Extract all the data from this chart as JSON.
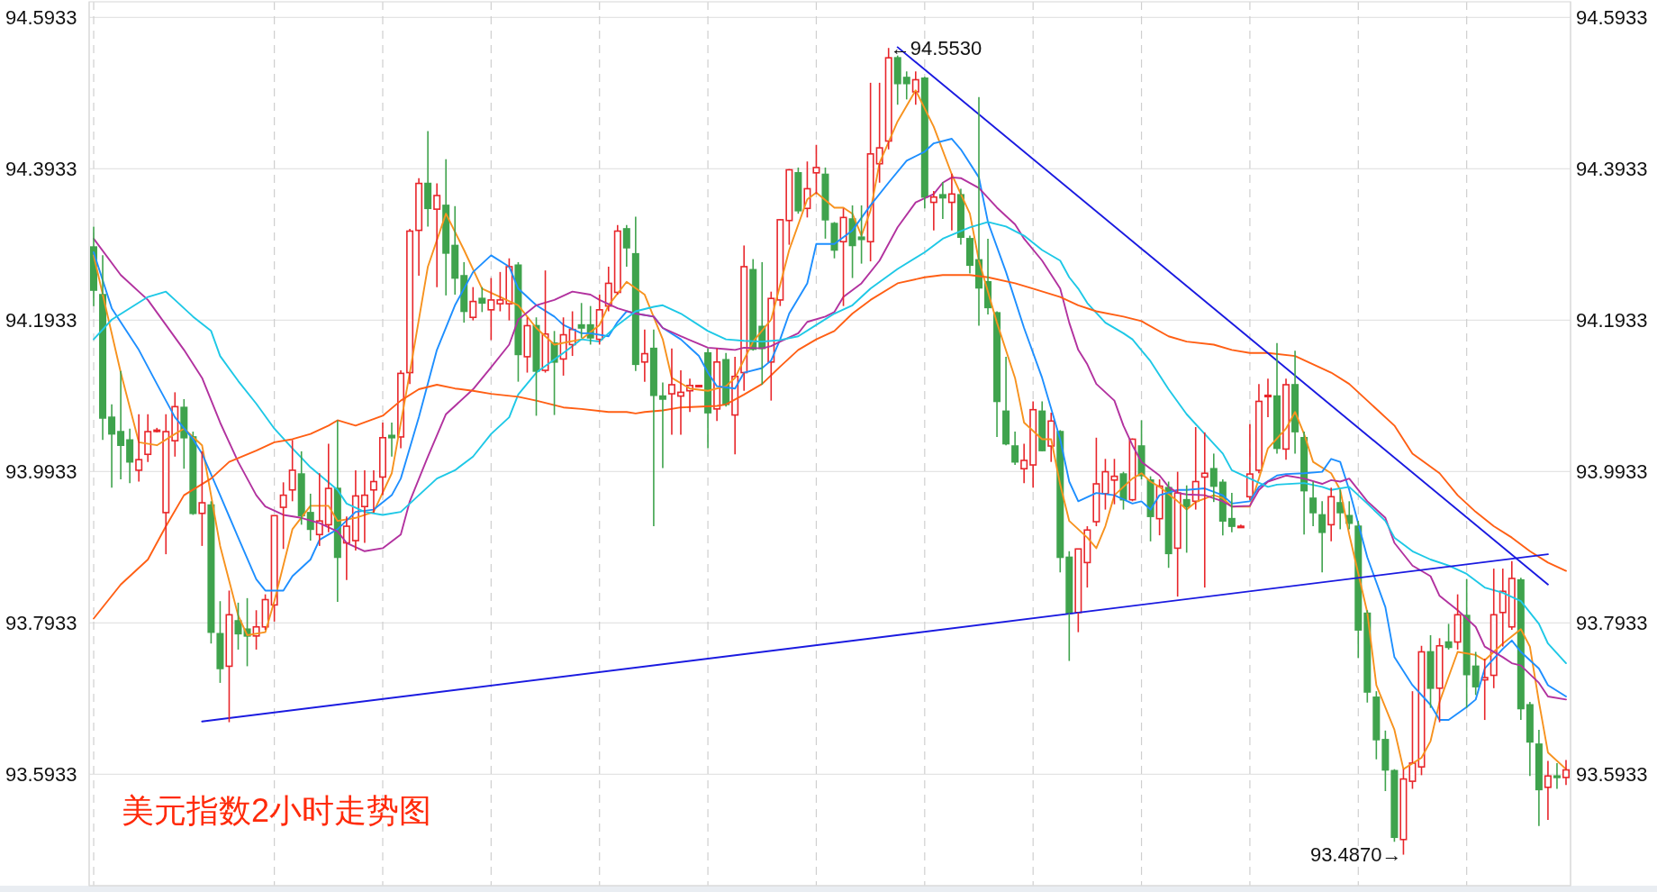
{
  "chart_data": {
    "type": "candlestick",
    "title": "美元指数2小时走势图",
    "categories": [
      null,
      null,
      null,
      null,
      null,
      null,
      null,
      null,
      null,
      null,
      null,
      null,
      null,
      null,
      null,
      null,
      null,
      null,
      null,
      null,
      null,
      null,
      null,
      null,
      null,
      null,
      null,
      null,
      null,
      null,
      null,
      null,
      null,
      null,
      null,
      null,
      null,
      null,
      null,
      null,
      null,
      null,
      null,
      null,
      null,
      null,
      null,
      null,
      null,
      null,
      null,
      null,
      null,
      null,
      null,
      null,
      null,
      null,
      null,
      null,
      null,
      null,
      null,
      null,
      null,
      null,
      null,
      null,
      null,
      null,
      null,
      null,
      null,
      null,
      null,
      null,
      null,
      null,
      null,
      null,
      null,
      null,
      null,
      null,
      null,
      null,
      null,
      null,
      null,
      null,
      null,
      null,
      null,
      null,
      null,
      null,
      null,
      null,
      null,
      null,
      null,
      null,
      null,
      null,
      null,
      null,
      null,
      null,
      null,
      null,
      null,
      null,
      null,
      null,
      null,
      null,
      null,
      null,
      null,
      null,
      null,
      null,
      null,
      null,
      null,
      null,
      null,
      null,
      null,
      null,
      null,
      null,
      null,
      null,
      null,
      null,
      null,
      null,
      null,
      null,
      null,
      null,
      null,
      null,
      null,
      null,
      null,
      null,
      null,
      null,
      null,
      null,
      null,
      null,
      null,
      null,
      null,
      null,
      null,
      null,
      null,
      null,
      null,
      null
    ],
    "ohlc": [
      [
        94.29,
        94.317,
        94.212,
        94.233
      ],
      [
        94.227,
        94.279,
        94.035,
        94.064
      ],
      [
        94.065,
        94.082,
        93.972,
        94.043
      ],
      [
        94.046,
        94.126,
        93.983,
        94.028
      ],
      [
        94.035,
        94.05,
        93.978,
        94.006
      ],
      [
        93.995,
        94.069,
        93.98,
        94.009
      ],
      [
        94.016,
        94.069,
        94.006,
        94.046
      ],
      [
        94.048,
        94.051,
        94.045,
        94.048
      ],
      [
        93.939,
        94.069,
        93.884,
        94.046
      ],
      [
        94.034,
        94.098,
        94.013,
        94.079
      ],
      [
        94.078,
        94.089,
        93.997,
        94.038
      ],
      [
        94.039,
        94.046,
        93.936,
        93.938
      ],
      [
        93.938,
        94.02,
        93.895,
        93.952
      ],
      [
        93.949,
        93.954,
        93.766,
        93.781
      ],
      [
        93.779,
        93.822,
        93.714,
        93.733
      ],
      [
        93.736,
        93.836,
        93.662,
        93.804
      ],
      [
        93.796,
        93.82,
        93.758,
        93.779
      ],
      [
        93.785,
        93.826,
        93.736,
        93.776
      ],
      [
        93.776,
        93.81,
        93.758,
        93.788
      ],
      [
        93.788,
        93.831,
        93.784,
        93.824
      ],
      [
        93.817,
        93.935,
        93.795,
        93.935
      ],
      [
        93.946,
        93.979,
        93.891,
        93.962
      ],
      [
        93.969,
        94.035,
        93.954,
        93.995
      ],
      [
        93.99,
        94.02,
        93.923,
        93.935
      ],
      [
        93.939,
        93.964,
        93.902,
        93.917
      ],
      [
        93.91,
        93.991,
        93.895,
        93.928
      ],
      [
        93.923,
        94.03,
        93.913,
        93.971
      ],
      [
        93.971,
        94.061,
        93.821,
        93.88
      ],
      [
        93.899,
        93.934,
        93.85,
        93.921
      ],
      [
        93.902,
        93.995,
        93.889,
        93.961
      ],
      [
        93.947,
        93.995,
        93.899,
        93.962
      ],
      [
        93.969,
        93.995,
        93.939,
        93.98
      ],
      [
        93.986,
        94.058,
        93.962,
        94.038
      ],
      [
        94.041,
        94.058,
        94.013,
        94.038
      ],
      [
        94.039,
        94.127,
        94.024,
        94.123
      ],
      [
        94.124,
        94.314,
        94.109,
        94.311
      ],
      [
        94.312,
        94.381,
        94.252,
        94.374
      ],
      [
        94.374,
        94.443,
        94.317,
        94.341
      ],
      [
        94.34,
        94.374,
        94.237,
        94.358
      ],
      [
        94.345,
        94.406,
        94.226,
        94.282
      ],
      [
        94.292,
        94.344,
        94.227,
        94.249
      ],
      [
        94.252,
        94.27,
        94.19,
        94.205
      ],
      [
        94.197,
        94.237,
        94.193,
        94.218
      ],
      [
        94.222,
        94.237,
        94.204,
        94.216
      ],
      [
        94.207,
        94.249,
        94.167,
        94.22
      ],
      [
        94.215,
        94.257,
        94.205,
        94.22
      ],
      [
        94.215,
        94.275,
        94.193,
        94.264
      ],
      [
        94.266,
        94.27,
        94.112,
        94.148
      ],
      [
        94.145,
        94.197,
        94.124,
        94.186
      ],
      [
        94.186,
        94.197,
        94.067,
        94.126
      ],
      [
        94.127,
        94.259,
        94.124,
        94.175
      ],
      [
        94.163,
        94.179,
        94.068,
        94.138
      ],
      [
        94.142,
        94.197,
        94.12,
        94.174
      ],
      [
        94.161,
        94.205,
        94.146,
        94.181
      ],
      [
        94.187,
        94.216,
        94.17,
        94.183
      ],
      [
        94.187,
        94.212,
        94.161,
        94.17
      ],
      [
        94.168,
        94.227,
        94.161,
        94.207
      ],
      [
        94.212,
        94.264,
        94.205,
        94.242
      ],
      [
        94.23,
        94.319,
        94.227,
        94.311
      ],
      [
        94.314,
        94.319,
        94.264,
        94.289
      ],
      [
        94.281,
        94.33,
        94.126,
        94.135
      ],
      [
        94.138,
        94.181,
        94.112,
        94.149
      ],
      [
        94.156,
        94.181,
        93.921,
        94.094
      ],
      [
        94.093,
        94.111,
        93.998,
        94.089
      ],
      [
        94.096,
        94.156,
        94.042,
        94.108
      ],
      [
        94.093,
        94.127,
        94.042,
        94.098
      ],
      [
        94.1,
        94.116,
        94.072,
        94.107
      ],
      [
        94.107,
        94.108,
        94.106,
        94.107
      ],
      [
        94.15,
        94.156,
        94.024,
        94.071
      ],
      [
        94.076,
        94.156,
        94.06,
        94.138
      ],
      [
        94.141,
        94.15,
        94.079,
        94.082
      ],
      [
        94.068,
        94.145,
        94.016,
        94.119
      ],
      [
        94.124,
        94.292,
        94.1,
        94.264
      ],
      [
        94.26,
        94.274,
        94.153,
        94.155
      ],
      [
        94.185,
        94.27,
        94.108,
        94.156
      ],
      [
        94.138,
        94.231,
        94.087,
        94.222
      ],
      [
        94.22,
        94.327,
        94.212,
        94.326
      ],
      [
        94.325,
        94.393,
        94.293,
        94.392
      ],
      [
        94.388,
        94.395,
        94.334,
        94.338
      ],
      [
        94.341,
        94.403,
        94.329,
        94.367
      ],
      [
        94.388,
        94.425,
        94.36,
        94.395
      ],
      [
        94.386,
        94.395,
        94.301,
        94.326
      ],
      [
        94.321,
        94.323,
        94.275,
        94.286
      ],
      [
        94.297,
        94.341,
        94.212,
        94.329
      ],
      [
        94.327,
        94.345,
        94.249,
        94.292
      ],
      [
        94.303,
        94.345,
        94.268,
        94.3
      ],
      [
        94.297,
        94.507,
        94.271,
        94.413
      ],
      [
        94.4,
        94.507,
        94.375,
        94.421
      ],
      [
        94.43,
        94.553,
        94.419,
        94.54
      ],
      [
        94.54,
        94.543,
        94.478,
        94.506
      ],
      [
        94.514,
        94.522,
        94.485,
        94.506
      ],
      [
        94.495,
        94.522,
        94.478,
        94.511
      ],
      [
        94.513,
        94.515,
        94.341,
        94.356
      ],
      [
        94.349,
        94.364,
        94.312,
        94.356
      ],
      [
        94.359,
        94.376,
        94.327,
        94.355
      ],
      [
        94.349,
        94.387,
        94.312,
        94.36
      ],
      [
        94.359,
        94.367,
        94.293,
        94.303
      ],
      [
        94.301,
        94.305,
        94.255,
        94.266
      ],
      [
        94.273,
        94.488,
        94.186,
        94.236
      ],
      [
        94.244,
        94.301,
        94.201,
        94.21
      ],
      [
        94.203,
        94.205,
        94.039,
        94.086
      ],
      [
        94.073,
        94.145,
        94.028,
        94.03
      ],
      [
        94.027,
        94.046,
        94.002,
        94.006
      ],
      [
        93.997,
        94.03,
        93.978,
        94.008
      ],
      [
        94.002,
        94.086,
        93.972,
        94.075
      ],
      [
        94.073,
        94.086,
        94.02,
        94.021
      ],
      [
        94.027,
        94.071,
        94.006,
        94.06
      ],
      [
        94.046,
        94.048,
        93.86,
        93.88
      ],
      [
        93.88,
        93.888,
        93.743,
        93.806
      ],
      [
        93.807,
        93.891,
        93.781,
        93.891
      ],
      [
        93.873,
        93.921,
        93.84,
        93.916
      ],
      [
        93.927,
        94.038,
        93.921,
        93.977
      ],
      [
        93.964,
        94.01,
        93.943,
        93.993
      ],
      [
        93.982,
        94.01,
        93.95,
        93.987
      ],
      [
        93.99,
        93.993,
        93.943,
        93.956
      ],
      [
        93.956,
        94.037,
        93.954,
        94.036
      ],
      [
        94.027,
        94.061,
        93.983,
        93.988
      ],
      [
        93.982,
        93.987,
        93.901,
        93.934
      ],
      [
        93.931,
        93.983,
        93.909,
        93.974
      ],
      [
        93.972,
        93.98,
        93.866,
        93.885
      ],
      [
        93.892,
        93.993,
        93.828,
        93.965
      ],
      [
        93.956,
        93.975,
        93.886,
        93.947
      ],
      [
        93.954,
        94.052,
        93.943,
        93.98
      ],
      [
        93.986,
        94.045,
        93.84,
        93.991
      ],
      [
        93.997,
        94.017,
        93.953,
        93.974
      ],
      [
        93.979,
        93.983,
        93.909,
        93.928
      ],
      [
        93.931,
        93.965,
        93.913,
        93.921
      ],
      [
        93.921,
        93.923,
        93.919,
        93.921
      ],
      [
        93.96,
        94.056,
        93.956,
        93.99
      ],
      [
        93.995,
        94.109,
        93.991,
        94.086
      ],
      [
        94.093,
        94.116,
        94.065,
        94.094
      ],
      [
        94.093,
        94.163,
        94.017,
        94.024
      ],
      [
        94.023,
        94.116,
        94.009,
        94.108
      ],
      [
        94.108,
        94.153,
        94.017,
        94.046
      ],
      [
        94.038,
        94.046,
        93.91,
        93.968
      ],
      [
        93.958,
        93.98,
        93.921,
        93.939
      ],
      [
        93.936,
        93.954,
        93.86,
        93.913
      ],
      [
        93.923,
        93.972,
        93.901,
        93.96
      ],
      [
        93.952,
        93.969,
        93.917,
        93.939
      ],
      [
        93.935,
        93.954,
        93.917,
        93.925
      ],
      [
        93.921,
        93.928,
        93.747,
        93.784
      ],
      [
        93.806,
        93.81,
        93.688,
        93.702
      ],
      [
        93.695,
        93.703,
        93.613,
        93.639
      ],
      [
        93.639,
        93.651,
        93.571,
        93.599
      ],
      [
        93.598,
        93.6,
        93.504,
        93.51
      ],
      [
        93.507,
        93.6,
        93.487,
        93.587
      ],
      [
        93.584,
        93.703,
        93.574,
        93.608
      ],
      [
        93.603,
        93.763,
        93.592,
        93.755
      ],
      [
        93.755,
        93.777,
        93.681,
        93.707
      ],
      [
        93.707,
        93.773,
        93.662,
        93.763
      ],
      [
        93.768,
        93.792,
        93.758,
        93.761
      ],
      [
        93.768,
        93.831,
        93.758,
        93.804
      ],
      [
        93.803,
        93.851,
        93.681,
        93.725
      ],
      [
        93.736,
        93.755,
        93.698,
        93.709
      ],
      [
        93.718,
        93.746,
        93.665,
        93.721
      ],
      [
        93.724,
        93.865,
        93.707,
        93.804
      ],
      [
        93.807,
        93.865,
        93.762,
        93.835
      ],
      [
        93.788,
        93.875,
        93.784,
        93.852
      ],
      [
        93.85,
        93.853,
        93.665,
        93.68
      ],
      [
        93.685,
        93.689,
        93.591,
        93.636
      ],
      [
        93.633,
        93.652,
        93.525,
        93.573
      ],
      [
        93.576,
        93.611,
        93.533,
        93.591
      ],
      [
        93.591,
        93.608,
        93.574,
        93.589
      ],
      [
        93.589,
        93.612,
        93.579,
        93.599
      ]
    ],
    "series": [
      {
        "type": "line",
        "color": "#f7921e",
        "values": [
          94.279,
          null,
          null,
          94.124,
          null,
          94.032,
          null,
          94.028,
          null,
          94.043,
          94.05,
          null,
          94.028,
          null,
          93.895,
          null,
          93.803,
          93.777,
          null,
          93.781,
          93.822,
          null,
          93.917,
          null,
          93.948,
          null,
          93.948,
          93.928,
          null,
          93.932,
          null,
          93.94,
          null,
          93.991,
          null,
          94.124,
          null,
          94.264,
          null,
          94.334,
          null,
          94.286,
          null,
          94.235,
          null,
          94.224,
          null,
          94.213,
          null,
          94.183,
          null,
          94.161,
          null,
          null,
          94.168,
          null,
          94.187,
          94.213,
          null,
          94.244,
          null,
          94.227,
          null,
          94.168,
          94.117,
          null,
          94.103,
          null,
          94.1,
          null,
          94.106,
          94.117,
          null,
          94.165,
          null,
          94.194,
          null,
          94.286,
          null,
          94.353,
          94.362,
          null,
          94.342,
          94.342,
          94.334,
          94.305,
          94.338,
          94.401,
          null,
          94.456,
          null,
          94.497,
          null,
          94.449,
          null,
          94.386,
          null,
          94.334,
          94.272,
          null,
          94.19,
          null,
          94.117,
          94.058,
          null,
          94.036,
          94.036,
          93.976,
          93.928,
          null,
          93.906,
          93.892,
          93.921,
          93.962,
          null,
          93.984,
          93.991,
          93.98,
          93.973,
          null,
          93.954,
          93.943,
          93.953,
          null,
          93.962,
          93.958,
          93.947,
          null,
          93.947,
          93.984,
          94.024,
          null,
          94.05,
          94.072,
          94.043,
          94.006,
          null,
          93.991,
          93.969,
          93.91,
          null,
          93.807,
          93.711,
          null,
          93.652,
          93.6,
          null,
          93.615,
          93.637,
          93.689,
          null,
          93.755,
          null,
          93.751,
          93.744,
          null,
          93.766,
          null,
          93.785,
          93.762,
          93.689,
          93.622,
          null,
          93.6
        ]
      },
      {
        "type": "line",
        "color": "#1e8fff",
        "values": [
          94.283,
          null,
          94.209,
          null,
          null,
          94.154,
          null,
          94.109,
          null,
          94.065,
          null,
          94.036,
          94.017,
          null,
          93.962,
          null,
          93.906,
          null,
          93.851,
          93.836,
          null,
          93.836,
          93.855,
          null,
          93.877,
          93.903,
          null,
          93.917,
          null,
          93.94,
          null,
          93.943,
          null,
          93.962,
          93.984,
          null,
          94.065,
          null,
          94.154,
          null,
          94.213,
          null,
          94.257,
          null,
          94.279,
          null,
          94.264,
          94.235,
          null,
          94.213,
          null,
          94.198,
          94.187,
          null,
          94.176,
          94.176,
          null,
          94.172,
          94.191,
          94.205,
          94.202,
          null,
          94.198,
          94.183,
          null,
          94.168,
          null,
          94.146,
          94.124,
          94.106,
          null,
          94.103,
          94.124,
          null,
          94.13,
          94.14,
          94.168,
          94.202,
          null,
          94.242,
          94.294,
          null,
          94.294,
          null,
          94.312,
          null,
          94.345,
          null,
          94.375,
          null,
          94.404,
          null,
          94.416,
          94.427,
          null,
          94.433,
          94.419,
          null,
          94.382,
          94.323,
          null,
          94.257,
          null,
          94.183,
          null,
          94.117,
          null,
          94.036,
          93.98,
          93.954,
          null,
          93.965,
          null,
          93.962,
          null,
          93.951,
          93.954,
          93.943,
          93.962,
          null,
          93.969,
          93.969,
          null,
          93.971,
          null,
          93.962,
          93.951,
          null,
          93.954,
          93.973,
          null,
          93.988,
          93.99,
          null,
          93.991,
          null,
          93.993,
          94.01,
          94.006,
          93.969,
          null,
          93.88,
          null,
          93.814,
          93.748,
          null,
          93.711,
          null,
          93.685,
          93.665,
          93.665,
          null,
          93.682,
          93.692,
          93.733,
          null,
          93.759,
          93.77,
          93.755,
          null,
          93.733,
          93.711,
          null,
          93.696
        ]
      },
      {
        "type": "line",
        "color": "#b2329f",
        "values": [
          94.301,
          null,
          null,
          94.253,
          null,
          null,
          94.22,
          null,
          94.187,
          null,
          94.154,
          null,
          94.117,
          null,
          94.058,
          null,
          94.006,
          null,
          93.962,
          93.947,
          null,
          93.936,
          null,
          93.932,
          null,
          93.925,
          null,
          93.914,
          93.899,
          null,
          93.888,
          null,
          93.892,
          null,
          93.91,
          93.954,
          null,
          94.013,
          null,
          94.069,
          null,
          null,
          94.102,
          null,
          94.131,
          null,
          94.161,
          94.194,
          null,
          94.213,
          null,
          94.22,
          null,
          94.231,
          null,
          94.227,
          94.22,
          null,
          94.209,
          null,
          94.202,
          null,
          94.198,
          94.183,
          null,
          94.172,
          null,
          94.162,
          94.157,
          null,
          94.155,
          94.154,
          94.157,
          null,
          94.156,
          94.159,
          94.165,
          null,
          94.176,
          94.191,
          null,
          94.198,
          94.204,
          94.224,
          null,
          94.242,
          null,
          94.272,
          null,
          94.316,
          null,
          94.349,
          null,
          94.36,
          94.375,
          94.382,
          94.381,
          null,
          94.368,
          null,
          94.342,
          null,
          94.32,
          94.301,
          null,
          94.272,
          null,
          94.235,
          94.19,
          94.154,
          94.135,
          94.109,
          null,
          94.087,
          94.054,
          94.028,
          94.006,
          null,
          93.988,
          93.973,
          93.965,
          93.963,
          null,
          93.962,
          null,
          93.954,
          93.947,
          null,
          93.948,
          93.969,
          93.98,
          null,
          93.988,
          null,
          93.984,
          null,
          93.977,
          93.982,
          93.98,
          93.984,
          null,
          93.954,
          null,
          93.932,
          93.899,
          null,
          93.869,
          null,
          93.855,
          93.829,
          null,
          93.81,
          null,
          93.788,
          93.762,
          null,
          93.748,
          93.74,
          93.737,
          null,
          93.714,
          93.696,
          null,
          93.692
        ]
      },
      {
        "type": "line",
        "color": "#1ec8e6",
        "values": [
          94.168,
          null,
          94.194,
          null,
          null,
          null,
          94.224,
          null,
          94.231,
          94.22,
          null,
          94.198,
          null,
          94.179,
          94.146,
          null,
          94.113,
          null,
          94.083,
          null,
          94.05,
          null,
          94.024,
          null,
          93.999,
          null,
          null,
          93.969,
          93.951,
          null,
          93.94,
          null,
          93.936,
          null,
          93.94,
          null,
          93.962,
          null,
          93.984,
          null,
          93.995,
          null,
          94.013,
          null,
          94.043,
          null,
          94.065,
          94.095,
          null,
          94.124,
          null,
          null,
          94.15,
          null,
          94.168,
          null,
          94.165,
          null,
          94.187,
          null,
          94.205,
          null,
          94.211,
          94.213,
          null,
          94.202,
          null,
          null,
          94.179,
          null,
          94.168,
          null,
          94.166,
          null,
          94.165,
          null,
          94.167,
          null,
          94.172,
          null,
          94.187,
          null,
          94.202,
          null,
          94.213,
          null,
          94.235,
          null,
          null,
          94.261,
          null,
          null,
          94.283,
          null,
          94.301,
          null,
          null,
          94.316,
          null,
          94.323,
          null,
          94.317,
          null,
          94.305,
          null,
          94.286,
          null,
          94.272,
          94.25,
          94.235,
          94.216,
          null,
          94.19,
          null,
          94.176,
          94.168,
          null,
          94.139,
          null,
          94.102,
          null,
          94.069,
          null,
          94.043,
          null,
          94.017,
          93.995,
          null,
          93.984,
          null,
          93.973,
          93.976,
          null,
          null,
          93.978,
          null,
          93.973,
          93.969,
          null,
          93.973,
          null,
          93.951,
          null,
          93.928,
          93.906,
          null,
          93.888,
          null,
          93.877,
          null,
          93.869,
          null,
          93.858,
          null,
          93.84,
          null,
          93.833,
          null,
          93.822,
          null,
          93.792,
          93.766,
          null,
          93.74
        ]
      },
      {
        "type": "line",
        "color": "#ff5f14",
        "values": [
          93.799,
          null,
          null,
          93.844,
          null,
          null,
          93.877,
          null,
          93.921,
          null,
          93.962,
          null,
          null,
          93.984,
          null,
          94.006,
          null,
          null,
          94.021,
          null,
          94.032,
          null,
          94.036,
          null,
          94.043,
          null,
          94.054,
          94.061,
          null,
          94.054,
          null,
          null,
          94.067,
          null,
          94.087,
          null,
          94.102,
          null,
          94.108,
          null,
          94.103,
          null,
          94.1,
          null,
          94.096,
          null,
          null,
          94.092,
          null,
          94.087,
          null,
          94.081,
          94.078,
          null,
          94.076,
          null,
          null,
          94.072,
          null,
          94.072,
          94.07,
          94.072,
          null,
          94.074,
          null,
          94.078,
          null,
          null,
          null,
          94.08,
          94.082,
          null,
          94.095,
          null,
          94.109,
          null,
          94.132,
          null,
          94.154,
          null,
          94.168,
          null,
          94.179,
          null,
          94.202,
          null,
          94.22,
          null,
          null,
          94.242,
          null,
          null,
          94.25,
          null,
          94.253,
          null,
          null,
          94.253,
          null,
          94.25,
          null,
          null,
          94.242,
          null,
          94.235,
          null,
          null,
          94.224,
          null,
          94.213,
          null,
          94.205,
          null,
          null,
          94.198,
          null,
          94.192,
          null,
          null,
          94.172,
          null,
          94.165,
          null,
          null,
          94.161,
          null,
          94.154,
          null,
          94.15,
          null,
          94.15,
          null,
          null,
          94.146,
          null,
          94.135,
          null,
          94.124,
          null,
          94.109,
          null,
          94.087,
          null,
          null,
          94.054,
          null,
          94.017,
          null,
          null,
          93.991,
          null,
          93.962,
          null,
          93.94,
          null,
          93.921,
          null,
          93.906,
          null,
          93.888,
          null,
          93.873,
          null,
          93.862
        ]
      },
      {
        "type": "line",
        "color": "#1a1ae0",
        "values": [
          null,
          null,
          null,
          null,
          null,
          null,
          null,
          null,
          null,
          null,
          null,
          null,
          93.663,
          null,
          null,
          null,
          null,
          null,
          null,
          null,
          null,
          null,
          null,
          null,
          null,
          null,
          null,
          null,
          null,
          null,
          null,
          null,
          null,
          null,
          null,
          null,
          null,
          null,
          null,
          null,
          null,
          null,
          null,
          null,
          null,
          null,
          null,
          null,
          null,
          null,
          null,
          null,
          null,
          null,
          null,
          null,
          null,
          null,
          null,
          null,
          null,
          null,
          null,
          null,
          null,
          null,
          null,
          null,
          null,
          null,
          null,
          null,
          null,
          null,
          null,
          null,
          null,
          null,
          null,
          null,
          null,
          null,
          null,
          null,
          null,
          null,
          null,
          null,
          null,
          null,
          null,
          null,
          null,
          null,
          null,
          null,
          null,
          null,
          null,
          null,
          null,
          null,
          null,
          null,
          null,
          null,
          null,
          null,
          null,
          null,
          null,
          null,
          null,
          null,
          null,
          null,
          null,
          null,
          null,
          null,
          null,
          null,
          null,
          null,
          null,
          null,
          null,
          null,
          null,
          null,
          null,
          null,
          null,
          null,
          null,
          null,
          null,
          null,
          null,
          null,
          null,
          null,
          null,
          null,
          null,
          null,
          null,
          null,
          null,
          null,
          null,
          null,
          null,
          null,
          null,
          null,
          null,
          null,
          null,
          null,
          null,
          93.884,
          null,
          null
        ]
      },
      {
        "type": "line",
        "color": "#1a1ae0",
        "values": [
          null,
          null,
          null,
          null,
          null,
          null,
          null,
          null,
          null,
          null,
          null,
          null,
          null,
          null,
          null,
          null,
          null,
          null,
          null,
          null,
          null,
          null,
          null,
          null,
          null,
          null,
          null,
          null,
          null,
          null,
          null,
          null,
          null,
          null,
          null,
          null,
          null,
          null,
          null,
          null,
          null,
          null,
          null,
          null,
          null,
          null,
          null,
          null,
          null,
          null,
          null,
          null,
          null,
          null,
          null,
          null,
          null,
          null,
          null,
          null,
          null,
          null,
          null,
          null,
          null,
          null,
          null,
          null,
          null,
          null,
          null,
          null,
          null,
          null,
          null,
          null,
          null,
          null,
          null,
          null,
          null,
          null,
          null,
          null,
          null,
          null,
          null,
          null,
          null,
          94.554,
          null,
          null,
          null,
          null,
          null,
          null,
          null,
          null,
          null,
          null,
          null,
          null,
          null,
          null,
          null,
          null,
          null,
          null,
          null,
          null,
          null,
          null,
          null,
          null,
          null,
          null,
          null,
          null,
          null,
          null,
          null,
          null,
          null,
          null,
          null,
          null,
          null,
          null,
          null,
          null,
          null,
          null,
          null,
          null,
          null,
          null,
          null,
          null,
          null,
          null,
          null,
          null,
          null,
          null,
          null,
          null,
          null,
          null,
          null,
          null,
          null,
          null,
          null,
          null,
          null,
          null,
          null,
          null,
          null,
          null,
          null,
          93.844,
          null,
          null
        ]
      }
    ],
    "annotations": [
      "←94.5530",
      "93.4870→"
    ],
    "ylim": [
      93.446,
      94.614
    ],
    "yticks": [
      93.5933,
      93.7933,
      93.9933,
      94.1933,
      94.3933,
      94.5933
    ],
    "y2lim": [
      93.446,
      94.614
    ],
    "y2ticks": [
      93.5933,
      93.7933,
      93.9933,
      94.1933,
      94.3933,
      94.5933
    ],
    "grid": true,
    "tick_labels": "y"
  }
}
